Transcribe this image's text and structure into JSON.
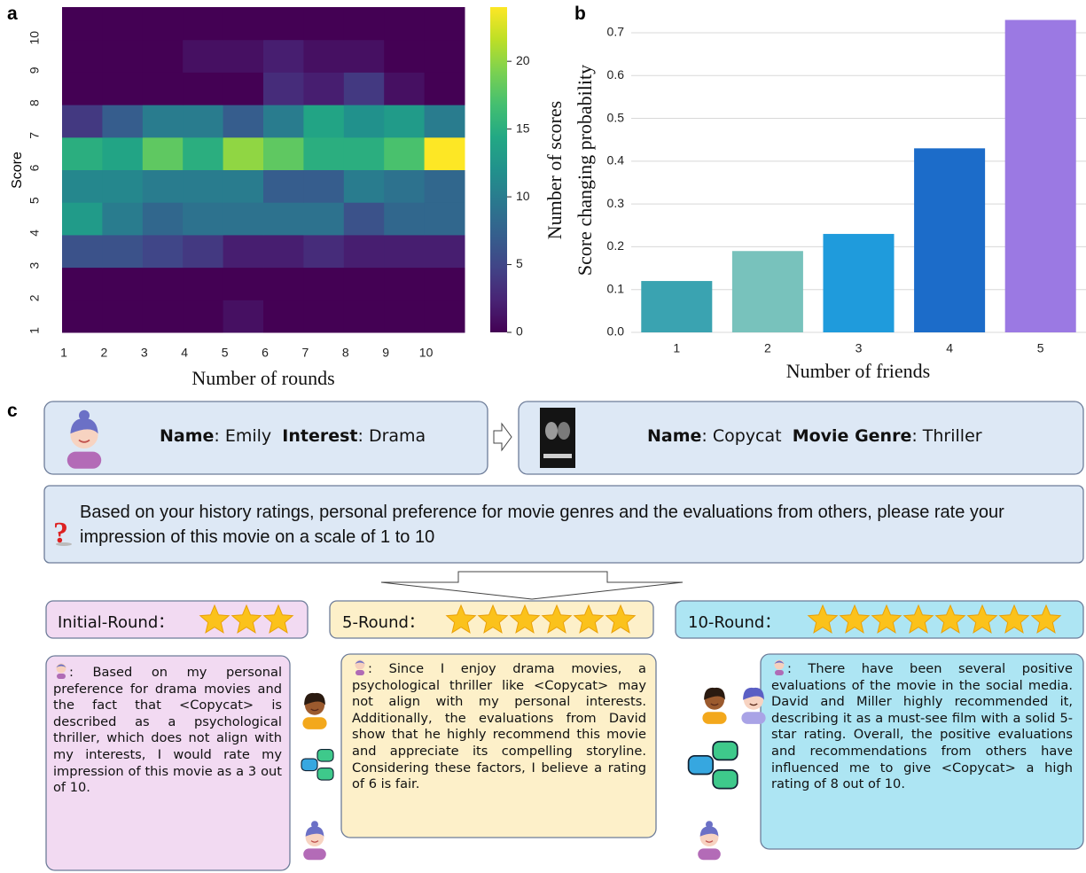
{
  "panel_labels": [
    "a",
    "b",
    "c"
  ],
  "chart_data": [
    {
      "type": "heatmap",
      "x": [
        1,
        2,
        3,
        4,
        5,
        6,
        7,
        8,
        9,
        10
      ],
      "y": [
        1,
        2,
        3,
        4,
        5,
        6,
        7,
        8,
        9,
        10
      ],
      "values": [
        [
          0,
          0,
          0,
          0,
          1,
          0,
          0,
          0,
          0,
          0
        ],
        [
          0,
          0,
          0,
          0,
          0,
          0,
          0,
          0,
          0,
          0
        ],
        [
          6,
          6,
          5,
          4,
          2,
          2,
          3,
          2,
          2,
          2
        ],
        [
          13,
          10,
          8,
          9,
          9,
          9,
          9,
          6,
          8,
          8
        ],
        [
          11,
          11,
          10,
          10,
          10,
          7,
          7,
          10,
          9,
          8
        ],
        [
          15,
          14,
          18,
          15,
          20,
          18,
          15,
          15,
          17,
          24
        ],
        [
          4,
          7,
          10,
          10,
          7,
          10,
          14,
          12,
          13,
          10
        ],
        [
          0,
          0,
          0,
          0,
          0,
          3,
          2,
          4,
          1,
          0
        ],
        [
          0,
          0,
          0,
          1,
          1,
          2,
          1,
          1,
          0,
          0
        ],
        [
          0,
          0,
          0,
          0,
          0,
          0,
          0,
          0,
          0,
          0
        ]
      ],
      "colormap": "viridis",
      "clim": [
        0,
        24
      ],
      "cticks": [
        0,
        5,
        10,
        15,
        20
      ],
      "xlabel": "Number of rounds",
      "ylabel": "Score",
      "colorbar_label": "Number of scores"
    },
    {
      "type": "bar",
      "categories": [
        1,
        2,
        3,
        4,
        5
      ],
      "values": [
        0.12,
        0.19,
        0.23,
        0.43,
        0.73
      ],
      "colors": [
        "#3aa3b1",
        "#78c2bc",
        "#1f9bdc",
        "#1c6cc9",
        "#9b79e3"
      ],
      "ylim": [
        0,
        0.76
      ],
      "yticks": [
        {
          "value": 0,
          "label": "0.0"
        },
        0.1,
        0.2,
        0.3,
        0.4,
        0.5,
        0.6,
        0.7
      ],
      "grid": true,
      "xlabel": "Number of friends",
      "ylabel": "Score changing probability"
    }
  ],
  "panel_c": {
    "user": [
      {
        "label": "Name",
        "text": ": Emily"
      },
      {
        "label": "Interest",
        "text": ": Drama"
      }
    ],
    "movie": [
      {
        "label": "Name",
        "text": ": Copycat"
      },
      {
        "label": "Movie Genre",
        "text": ": Thriller"
      }
    ],
    "question": "Based on your history ratings, personal preference for movie genres and the evaluations from others, please rate your impression of this movie on a scale of 1 to 10",
    "ratings": [
      {
        "label": "Initial-Round：",
        "stars": 3,
        "text": ": Based on my personal preference for drama movies and the fact that <Copycat> is described as a psychological thriller, which does not align with my interests, I would rate my impression of this movie as a 3 out of 10."
      },
      {
        "label": "5-Round：",
        "stars": 6,
        "text": ": Since I enjoy drama movies, a psychological thriller like <Copycat> may not align with my personal interests. Additionally, the evaluations from David show that he highly recommend this movie and appreciate its compelling storyline. Considering these factors, I believe a rating of 6 is fair."
      },
      {
        "label": "10-Round：",
        "stars": 8,
        "text": ": There have been several positive evaluations of the movie in the social media. David and Miller highly recommended it, describing it as a must-see film with a solid 5-star rating. Overall, the positive evaluations and recommendations from others have influenced me to give <Copycat> a high rating of 8 out of 10."
      }
    ]
  }
}
